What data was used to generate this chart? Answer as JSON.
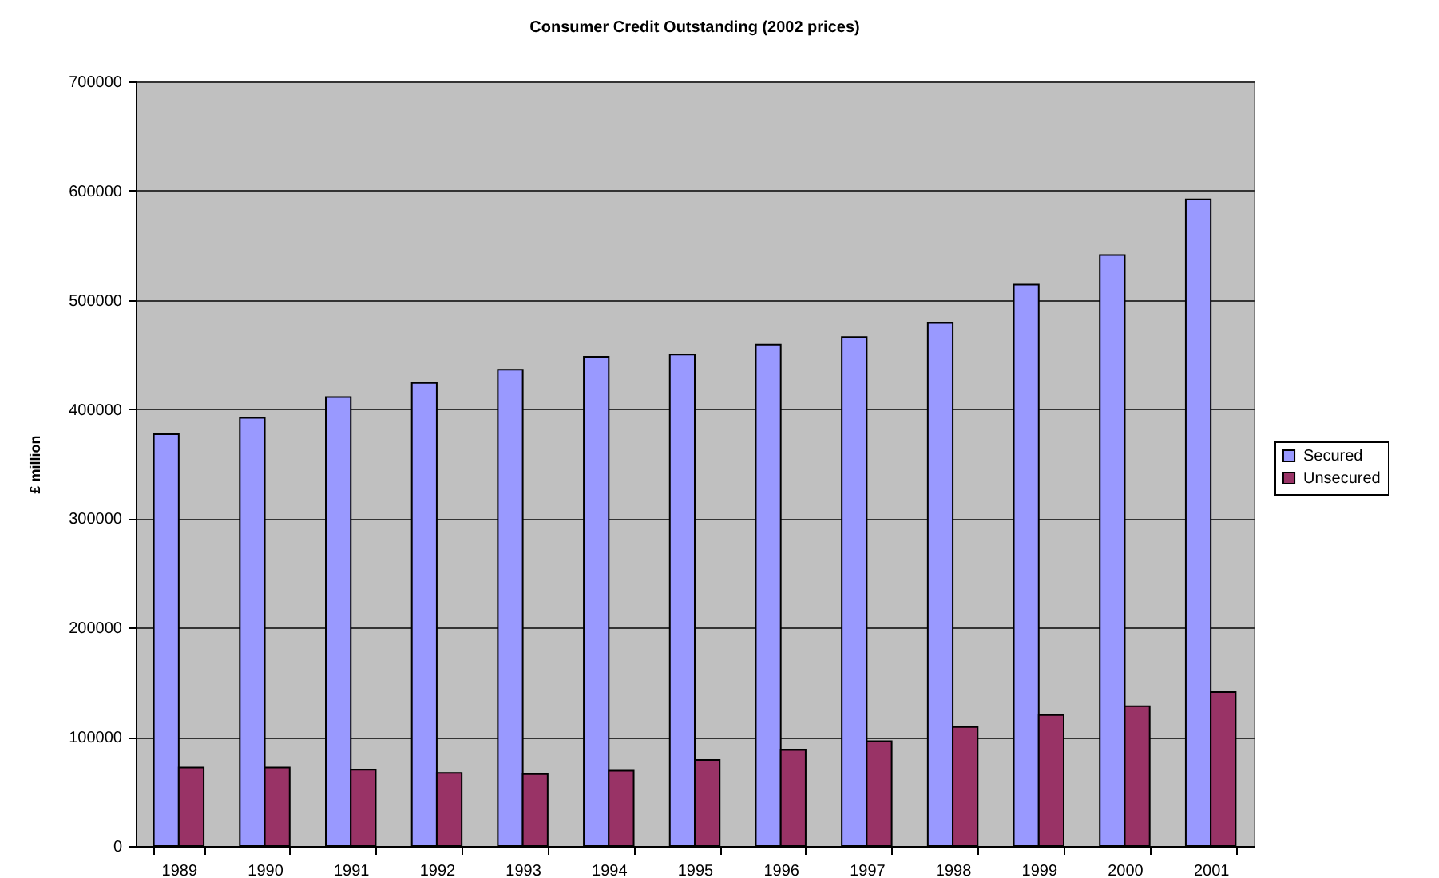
{
  "chart_data": {
    "type": "bar",
    "title": "Consumer Credit Outstanding (2002 prices)",
    "ylabel": "£ million",
    "categories": [
      "1989",
      "1990",
      "1991",
      "1992",
      "1993",
      "1994",
      "1995",
      "1996",
      "1997",
      "1998",
      "1999",
      "2000",
      "2001"
    ],
    "series": [
      {
        "name": "Secured",
        "color": "#9999ff",
        "values": [
          377000,
          392000,
          411000,
          424000,
          436000,
          448000,
          450000,
          459000,
          466000,
          479000,
          514000,
          541000,
          592000
        ]
      },
      {
        "name": "Unsecured",
        "color": "#993366",
        "values": [
          72000,
          72000,
          70000,
          67000,
          66000,
          69000,
          79000,
          88000,
          96000,
          109000,
          120000,
          128000,
          141000
        ]
      }
    ],
    "ylim": [
      0,
      700000
    ],
    "yticks": [
      0,
      100000,
      200000,
      300000,
      400000,
      500000,
      600000,
      700000
    ],
    "grid": "y",
    "legend": "right"
  }
}
